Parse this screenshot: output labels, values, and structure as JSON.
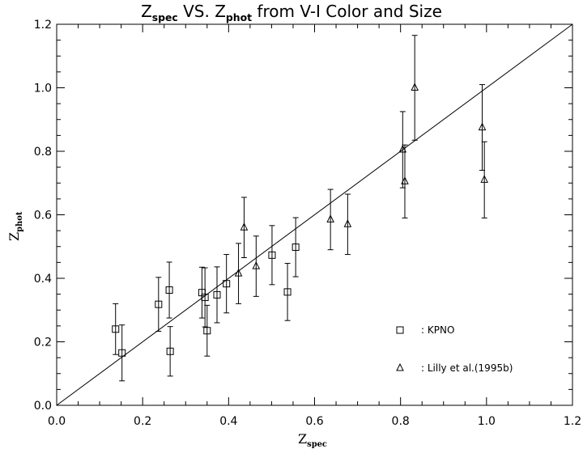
{
  "chart_data": {
    "type": "scatter",
    "title": {
      "part1": "Z",
      "part1_sub": "spec",
      "part2": " VS. Z",
      "part2_sub": "phot",
      "part3": " from V-I Color and Size"
    },
    "xlabel": {
      "main": "Z",
      "sub": "spec"
    },
    "ylabel": {
      "main": "Z",
      "sub": "phot"
    },
    "xlim": [
      0.0,
      1.2
    ],
    "ylim": [
      0.0,
      1.2
    ],
    "xticks": [
      "0.0",
      "0.2",
      "0.4",
      "0.6",
      "0.8",
      "1.0",
      "1.2"
    ],
    "yticks": [
      "0.0",
      "0.2",
      "0.4",
      "0.6",
      "0.8",
      "1.0",
      "1.2"
    ],
    "grid": false,
    "legend_position": "bottom-right",
    "reference_line": {
      "from": [
        0.0,
        0.0
      ],
      "to": [
        1.2,
        1.2
      ]
    },
    "series": [
      {
        "name": ": KPNO",
        "marker": "square",
        "points": [
          {
            "x": 0.137,
            "y": 0.24,
            "err": 0.08
          },
          {
            "x": 0.152,
            "y": 0.165,
            "err": 0.088
          },
          {
            "x": 0.237,
            "y": 0.318,
            "err": 0.085
          },
          {
            "x": 0.262,
            "y": 0.363,
            "err": 0.088
          },
          {
            "x": 0.264,
            "y": 0.17,
            "err": 0.078
          },
          {
            "x": 0.338,
            "y": 0.355,
            "err": 0.08
          },
          {
            "x": 0.345,
            "y": 0.34,
            "err": 0.093
          },
          {
            "x": 0.35,
            "y": 0.235,
            "err": 0.08
          },
          {
            "x": 0.373,
            "y": 0.348,
            "err": 0.088
          },
          {
            "x": 0.395,
            "y": 0.383,
            "err": 0.092
          },
          {
            "x": 0.501,
            "y": 0.473,
            "err": 0.093
          },
          {
            "x": 0.537,
            "y": 0.357,
            "err": 0.09
          },
          {
            "x": 0.556,
            "y": 0.498,
            "err": 0.093
          }
        ]
      },
      {
        "name": ": Lilly et al.(1995b)",
        "marker": "triangle",
        "points": [
          {
            "x": 0.423,
            "y": 0.415,
            "err": 0.095
          },
          {
            "x": 0.436,
            "y": 0.56,
            "err": 0.095
          },
          {
            "x": 0.464,
            "y": 0.438,
            "err": 0.095
          },
          {
            "x": 0.637,
            "y": 0.585,
            "err": 0.095
          },
          {
            "x": 0.677,
            "y": 0.57,
            "err": 0.095
          },
          {
            "x": 0.805,
            "y": 0.805,
            "err": 0.12
          },
          {
            "x": 0.81,
            "y": 0.705,
            "err": 0.115
          },
          {
            "x": 0.833,
            "y": 1.0,
            "err": 0.165
          },
          {
            "x": 0.99,
            "y": 0.875,
            "err": 0.135
          },
          {
            "x": 0.995,
            "y": 0.71,
            "err": 0.12
          }
        ]
      }
    ]
  }
}
